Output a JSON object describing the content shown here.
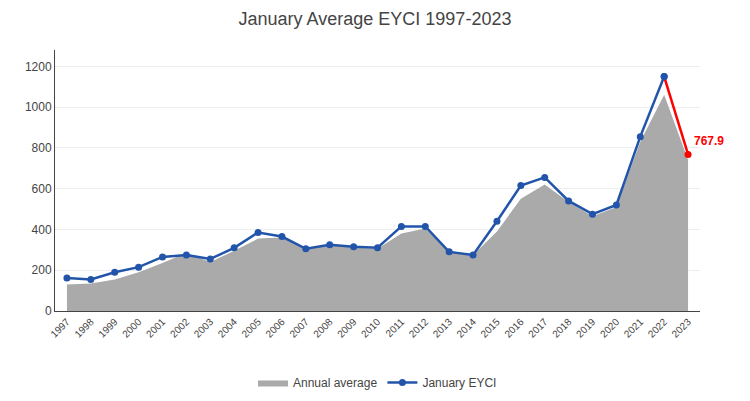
{
  "chart_data": {
    "type": "line",
    "title": "January Average EYCI 1997-2023",
    "x": [
      1997,
      1998,
      1999,
      2000,
      2001,
      2002,
      2003,
      2004,
      2005,
      2006,
      2007,
      2008,
      2009,
      2010,
      2011,
      2012,
      2013,
      2014,
      2015,
      2016,
      2017,
      2018,
      2019,
      2020,
      2021,
      2022,
      2023
    ],
    "series": [
      {
        "name": "Annual average",
        "type": "area",
        "color": "#aaaaaa",
        "values": [
          130,
          135,
          155,
          190,
          235,
          285,
          240,
          295,
          355,
          360,
          305,
          325,
          310,
          305,
          380,
          405,
          295,
          275,
          390,
          550,
          620,
          535,
          465,
          510,
          830,
          1060,
          740
        ]
      },
      {
        "name": "January EYCI",
        "type": "line",
        "marker": "circle",
        "colors": [
          "#2255aa",
          "#2255aa",
          "#2255aa",
          "#2255aa",
          "#2255aa",
          "#2255aa",
          "#2255aa",
          "#2255aa",
          "#2255aa",
          "#2255aa",
          "#2255aa",
          "#2255aa",
          "#2255aa",
          "#2255aa",
          "#2255aa",
          "#2255aa",
          "#2255aa",
          "#2255aa",
          "#2255aa",
          "#2255aa",
          "#2255aa",
          "#2255aa",
          "#2255aa",
          "#2255aa",
          "#2255aa",
          "#2255aa",
          "#ff0000"
        ],
        "values": [
          162,
          155,
          190,
          215,
          265,
          275,
          255,
          310,
          385,
          365,
          305,
          325,
          315,
          310,
          415,
          415,
          290,
          275,
          440,
          615,
          655,
          540,
          475,
          520,
          855,
          1150,
          767.9
        ]
      }
    ],
    "annotations": [
      {
        "text": "767.9",
        "x": 2023,
        "y": 767.9,
        "color": "#ff0000"
      }
    ],
    "xlim": [
      1996.5,
      2023.5
    ],
    "xticks": [
      1997,
      1998,
      1999,
      2000,
      2001,
      2002,
      2003,
      2004,
      2005,
      2006,
      2007,
      2008,
      2009,
      2010,
      2011,
      2012,
      2013,
      2014,
      2015,
      2016,
      2017,
      2018,
      2019,
      2020,
      2021,
      2022,
      2023
    ],
    "ylim": [
      0,
      1280
    ],
    "yticks": [
      0,
      200,
      400,
      600,
      800,
      1000,
      1200
    ],
    "grid": true,
    "legend": "bottom"
  }
}
